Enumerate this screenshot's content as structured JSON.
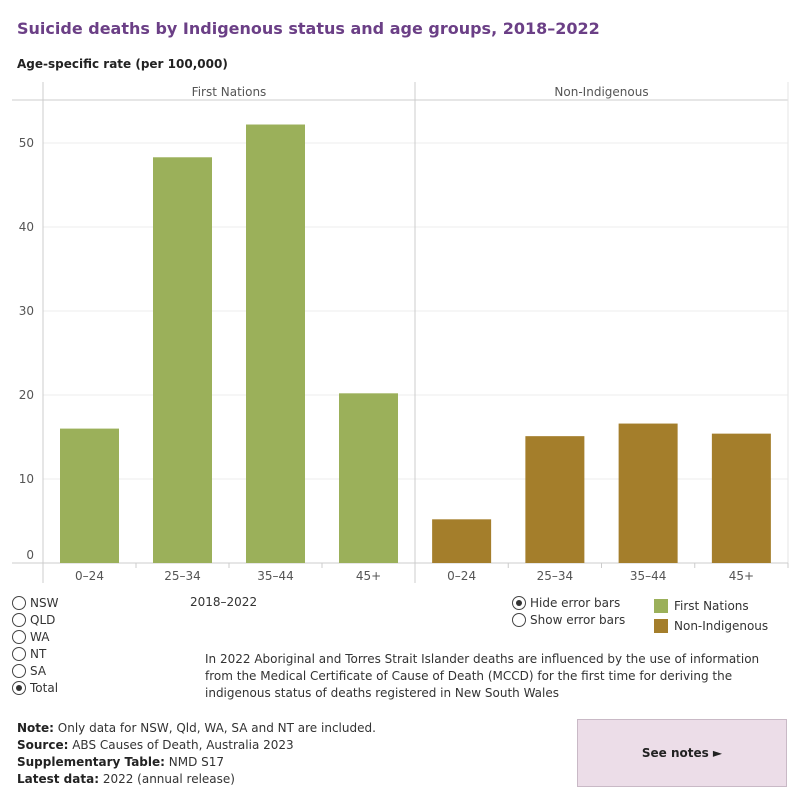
{
  "title": "Suicide deaths by Indigenous status and age groups, 2018–2022",
  "y_axis_title": "Age-specific rate (per 100,000)",
  "period_label": "2018–2022",
  "state_filter": {
    "options": [
      "NSW",
      "QLD",
      "WA",
      "NT",
      "SA",
      "Total"
    ],
    "selected": "Total"
  },
  "error_bars": {
    "options": [
      "Hide error bars",
      "Show error bars"
    ],
    "selected": "Hide error bars"
  },
  "legend": [
    {
      "label": "First Nations",
      "color": "#9bb05a"
    },
    {
      "label": "Non-Indigenous",
      "color": "#a47e2b"
    }
  ],
  "footnote": "In 2022 Aboriginal and Torres Strait Islander deaths are influenced by the use of information from the Medical Certificate of Cause of Death (MCCD) for the first time for deriving the indigenous status of deaths registered in New South Wales",
  "notes": {
    "note_label": "Note:",
    "note_text": " Only data for NSW, Qld, WA, SA and NT are included.",
    "source_label": "Source:",
    "source_text": " ABS Causes of Death, Australia 2023",
    "supp_label": "Supplementary Table:",
    "supp_text": " NMD S17",
    "latest_label": "Latest data:",
    "latest_text": " 2022 (annual release)"
  },
  "see_notes_label": "See notes ►",
  "chart_data": {
    "type": "bar",
    "title": "Suicide deaths by Indigenous status and age groups, 2018–2022",
    "ylabel": "Age-specific rate (per 100,000)",
    "xlabel": "",
    "ylim": [
      0,
      55
    ],
    "yticks": [
      0,
      10,
      20,
      30,
      40,
      50
    ],
    "categories": [
      "0–24",
      "25–34",
      "35–44",
      "45+"
    ],
    "series": [
      {
        "name": "First Nations",
        "color": "#9bb05a",
        "values": [
          16.0,
          48.3,
          52.2,
          20.2
        ]
      },
      {
        "name": "Non-Indigenous",
        "color": "#a47e2b",
        "values": [
          5.2,
          15.1,
          16.6,
          15.4
        ]
      }
    ]
  }
}
